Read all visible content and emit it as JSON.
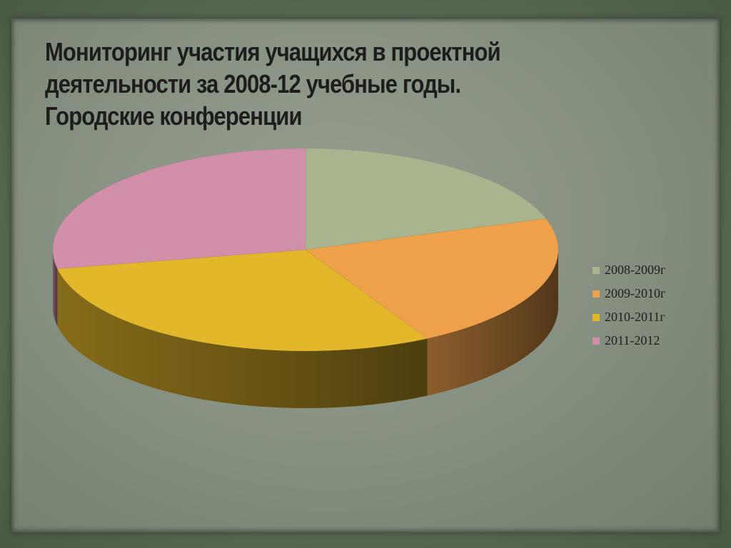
{
  "slide": {
    "title_lines": [
      "Мониторинг участия учащихся в проектной",
      "деятельности за  2008-12 учебные годы.",
      "Городские  конференции"
    ]
  },
  "chart_data": {
    "type": "pie",
    "style": "3d",
    "title": "",
    "categories": [
      "2008-2009г",
      "2009-2010г",
      "2010-2011г",
      "2011-2012"
    ],
    "values": [
      20,
      22,
      30,
      28
    ],
    "colors": [
      "#a8b58f",
      "#eea04a",
      "#e3b72a",
      "#d18fa9"
    ],
    "legend_position": "right"
  }
}
